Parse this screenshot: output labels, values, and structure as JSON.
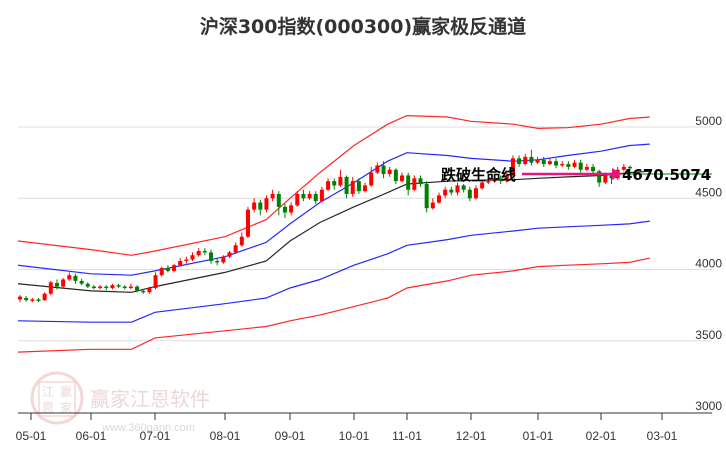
{
  "title": "沪深300指数(000300)赢家极反通道",
  "colors": {
    "up": "#ff0000",
    "down": "#008000",
    "upper_outer": "#ff0000",
    "upper_inner": "#0000ff",
    "middle": "#000000",
    "lower_inner": "#0000ff",
    "lower_outer": "#ff0000",
    "arrow": "#e5177f",
    "price_line": "#008000",
    "grid": "#dddddd"
  },
  "annotation": {
    "text": "跌破生命线",
    "value_label": "4670.5074"
  },
  "watermark": {
    "name": "赢家江恩软件",
    "url": "www.360gann.com",
    "logo_chars": [
      "江",
      "赢",
      "恩",
      "家"
    ]
  },
  "chart_data": {
    "type": "candlestick",
    "title": "沪深300指数(000300)赢家极反通道",
    "xlabel": "",
    "ylabel": "",
    "ylim": [
      3000,
      5100
    ],
    "y_ticks": [
      5000,
      4500,
      4000,
      3500,
      3000
    ],
    "x_ticks": [
      "05-01",
      "06-01",
      "07-01",
      "08-01",
      "09-01",
      "10-01",
      "11-01",
      "12-01",
      "01-01",
      "02-01",
      "03-01"
    ],
    "grid": true,
    "legend": null,
    "annotations": [
      {
        "text": "跌破生命线",
        "type": "arrow",
        "target_value": 4670.5074
      },
      {
        "text": "4670.5074",
        "type": "horizontal-line",
        "value": 4670.5074
      }
    ],
    "series": [
      {
        "name": "upper_outer_band",
        "color": "#ff0000",
        "points": [
          [
            "05-01",
            4200
          ],
          [
            "06-01",
            4140
          ],
          [
            "06-20",
            4100
          ],
          [
            "07-01",
            4130
          ],
          [
            "08-01",
            4230
          ],
          [
            "08-20",
            4350
          ],
          [
            "09-01",
            4500
          ],
          [
            "09-15",
            4680
          ],
          [
            "10-01",
            4870
          ],
          [
            "10-20",
            5020
          ],
          [
            "11-01",
            5080
          ],
          [
            "11-20",
            5070
          ],
          [
            "12-01",
            5040
          ],
          [
            "12-20",
            5020
          ],
          [
            "01-01",
            4990
          ],
          [
            "01-15",
            4995
          ],
          [
            "02-01",
            5020
          ],
          [
            "02-15",
            5060
          ],
          [
            "02-25",
            5070
          ]
        ]
      },
      {
        "name": "upper_inner_band",
        "color": "#0000ff",
        "points": [
          [
            "05-01",
            4030
          ],
          [
            "06-01",
            3970
          ],
          [
            "06-20",
            3960
          ],
          [
            "07-01",
            3990
          ],
          [
            "08-01",
            4090
          ],
          [
            "08-20",
            4190
          ],
          [
            "09-01",
            4320
          ],
          [
            "09-15",
            4470
          ],
          [
            "10-01",
            4610
          ],
          [
            "10-20",
            4760
          ],
          [
            "11-01",
            4820
          ],
          [
            "11-20",
            4800
          ],
          [
            "12-01",
            4780
          ],
          [
            "12-20",
            4760
          ],
          [
            "01-01",
            4770
          ],
          [
            "01-15",
            4800
          ],
          [
            "02-01",
            4830
          ],
          [
            "02-15",
            4870
          ],
          [
            "02-25",
            4880
          ]
        ]
      },
      {
        "name": "middle_line",
        "color": "#000000",
        "points": [
          [
            "05-01",
            3900
          ],
          [
            "06-01",
            3850
          ],
          [
            "06-20",
            3840
          ],
          [
            "07-01",
            3880
          ],
          [
            "08-01",
            3980
          ],
          [
            "08-20",
            4060
          ],
          [
            "09-01",
            4200
          ],
          [
            "09-15",
            4330
          ],
          [
            "10-01",
            4440
          ],
          [
            "10-20",
            4540
          ],
          [
            "11-01",
            4600
          ],
          [
            "11-20",
            4620
          ],
          [
            "12-01",
            4625
          ],
          [
            "12-20",
            4630
          ],
          [
            "01-01",
            4640
          ],
          [
            "01-15",
            4650
          ],
          [
            "02-01",
            4660
          ],
          [
            "02-15",
            4680
          ],
          [
            "02-25",
            4690
          ]
        ]
      },
      {
        "name": "lower_inner_band",
        "color": "#0000ff",
        "points": [
          [
            "05-01",
            3640
          ],
          [
            "06-01",
            3630
          ],
          [
            "06-20",
            3630
          ],
          [
            "07-01",
            3700
          ],
          [
            "08-01",
            3760
          ],
          [
            "08-20",
            3800
          ],
          [
            "09-01",
            3870
          ],
          [
            "09-15",
            3930
          ],
          [
            "10-01",
            4030
          ],
          [
            "10-20",
            4110
          ],
          [
            "11-01",
            4170
          ],
          [
            "11-20",
            4210
          ],
          [
            "12-01",
            4240
          ],
          [
            "12-20",
            4270
          ],
          [
            "01-01",
            4290
          ],
          [
            "01-15",
            4300
          ],
          [
            "02-01",
            4310
          ],
          [
            "02-15",
            4320
          ],
          [
            "02-25",
            4340
          ]
        ]
      },
      {
        "name": "lower_outer_band",
        "color": "#ff0000",
        "points": [
          [
            "05-01",
            3420
          ],
          [
            "06-01",
            3440
          ],
          [
            "06-20",
            3440
          ],
          [
            "07-01",
            3520
          ],
          [
            "08-01",
            3570
          ],
          [
            "08-20",
            3600
          ],
          [
            "09-01",
            3640
          ],
          [
            "09-15",
            3680
          ],
          [
            "10-01",
            3740
          ],
          [
            "10-20",
            3800
          ],
          [
            "11-01",
            3870
          ],
          [
            "11-20",
            3920
          ],
          [
            "12-01",
            3960
          ],
          [
            "12-20",
            3990
          ],
          [
            "01-01",
            4020
          ],
          [
            "01-15",
            4030
          ],
          [
            "02-01",
            4040
          ],
          [
            "02-15",
            4050
          ],
          [
            "02-25",
            4080
          ]
        ]
      }
    ],
    "candles_approx": [
      [
        3790,
        3810,
        3770,
        3820
      ],
      [
        3800,
        3785,
        3775,
        3815
      ],
      [
        3780,
        3790,
        3770,
        3800
      ],
      [
        3790,
        3780,
        3770,
        3800
      ],
      [
        3785,
        3830,
        3780,
        3840
      ],
      [
        3830,
        3910,
        3820,
        3920
      ],
      [
        3905,
        3880,
        3860,
        3930
      ],
      [
        3880,
        3930,
        3870,
        3940
      ],
      [
        3930,
        3960,
        3920,
        3980
      ],
      [
        3955,
        3920,
        3900,
        3970
      ],
      [
        3920,
        3900,
        3890,
        3935
      ],
      [
        3900,
        3880,
        3870,
        3910
      ],
      [
        3880,
        3870,
        3860,
        3890
      ],
      [
        3870,
        3880,
        3860,
        3890
      ],
      [
        3880,
        3870,
        3855,
        3890
      ],
      [
        3870,
        3890,
        3860,
        3900
      ],
      [
        3890,
        3880,
        3870,
        3900
      ],
      [
        3880,
        3870,
        3860,
        3890
      ],
      [
        3870,
        3880,
        3860,
        3900
      ],
      [
        3880,
        3850,
        3840,
        3890
      ],
      [
        3850,
        3840,
        3830,
        3860
      ],
      [
        3840,
        3870,
        3830,
        3880
      ],
      [
        3870,
        3960,
        3860,
        3980
      ],
      [
        3960,
        4010,
        3950,
        4020
      ],
      [
        4010,
        3990,
        3980,
        4030
      ],
      [
        3990,
        4030,
        3980,
        4040
      ],
      [
        4030,
        4060,
        4020,
        4080
      ],
      [
        4060,
        4070,
        4040,
        4090
      ],
      [
        4070,
        4100,
        4060,
        4120
      ],
      [
        4100,
        4130,
        4090,
        4150
      ],
      [
        4130,
        4120,
        4100,
        4150
      ],
      [
        4120,
        4060,
        4040,
        4140
      ],
      [
        4060,
        4050,
        4030,
        4080
      ],
      [
        4050,
        4090,
        4040,
        4100
      ],
      [
        4090,
        4120,
        4080,
        4130
      ],
      [
        4120,
        4170,
        4110,
        4190
      ],
      [
        4170,
        4230,
        4160,
        4260
      ],
      [
        4230,
        4420,
        4220,
        4440
      ],
      [
        4420,
        4470,
        4400,
        4500
      ],
      [
        4470,
        4420,
        4380,
        4490
      ],
      [
        4420,
        4500,
        4400,
        4520
      ],
      [
        4500,
        4530,
        4480,
        4560
      ],
      [
        4530,
        4440,
        4380,
        4550
      ],
      [
        4440,
        4400,
        4360,
        4460
      ],
      [
        4400,
        4450,
        4380,
        4470
      ],
      [
        4450,
        4530,
        4440,
        4550
      ],
      [
        4530,
        4500,
        4480,
        4560
      ],
      [
        4500,
        4530,
        4490,
        4550
      ],
      [
        4530,
        4480,
        4460,
        4550
      ],
      [
        4480,
        4560,
        4470,
        4580
      ],
      [
        4560,
        4620,
        4550,
        4640
      ],
      [
        4620,
        4590,
        4560,
        4640
      ],
      [
        4590,
        4650,
        4580,
        4700
      ],
      [
        4650,
        4530,
        4500,
        4660
      ],
      [
        4530,
        4620,
        4510,
        4650
      ],
      [
        4620,
        4550,
        4530,
        4640
      ],
      [
        4550,
        4590,
        4540,
        4610
      ],
      [
        4590,
        4680,
        4580,
        4720
      ],
      [
        4680,
        4730,
        4670,
        4750
      ],
      [
        4730,
        4670,
        4640,
        4760
      ],
      [
        4670,
        4700,
        4650,
        4720
      ],
      [
        4700,
        4620,
        4600,
        4710
      ],
      [
        4620,
        4660,
        4610,
        4680
      ],
      [
        4660,
        4560,
        4520,
        4680
      ],
      [
        4560,
        4640,
        4550,
        4660
      ],
      [
        4640,
        4600,
        4580,
        4660
      ],
      [
        4600,
        4430,
        4400,
        4620
      ],
      [
        4430,
        4470,
        4420,
        4500
      ],
      [
        4470,
        4520,
        4460,
        4540
      ],
      [
        4520,
        4560,
        4500,
        4580
      ],
      [
        4560,
        4540,
        4520,
        4580
      ],
      [
        4540,
        4590,
        4520,
        4610
      ],
      [
        4590,
        4560,
        4540,
        4600
      ],
      [
        4560,
        4500,
        4480,
        4580
      ],
      [
        4500,
        4570,
        4490,
        4590
      ],
      [
        4570,
        4610,
        4560,
        4630
      ],
      [
        4610,
        4620,
        4600,
        4640
      ],
      [
        4620,
        4640,
        4610,
        4660
      ],
      [
        4640,
        4620,
        4600,
        4660
      ],
      [
        4620,
        4660,
        4610,
        4680
      ],
      [
        4660,
        4780,
        4650,
        4800
      ],
      [
        4780,
        4740,
        4720,
        4800
      ],
      [
        4740,
        4790,
        4730,
        4810
      ],
      [
        4790,
        4750,
        4730,
        4840
      ],
      [
        4750,
        4770,
        4740,
        4790
      ],
      [
        4770,
        4740,
        4720,
        4790
      ],
      [
        4740,
        4760,
        4730,
        4780
      ],
      [
        4760,
        4730,
        4710,
        4780
      ],
      [
        4730,
        4740,
        4720,
        4760
      ],
      [
        4740,
        4720,
        4700,
        4760
      ],
      [
        4720,
        4750,
        4710,
        4770
      ],
      [
        4750,
        4700,
        4680,
        4770
      ],
      [
        4700,
        4720,
        4690,
        4740
      ],
      [
        4720,
        4690,
        4670,
        4740
      ],
      [
        4690,
        4610,
        4580,
        4700
      ],
      [
        4610,
        4660,
        4600,
        4680
      ],
      [
        4660,
        4640,
        4600,
        4680
      ],
      [
        4640,
        4700,
        4630,
        4720
      ],
      [
        4700,
        4720,
        4690,
        4740
      ],
      [
        4720,
        4710,
        4700,
        4730
      ]
    ]
  }
}
